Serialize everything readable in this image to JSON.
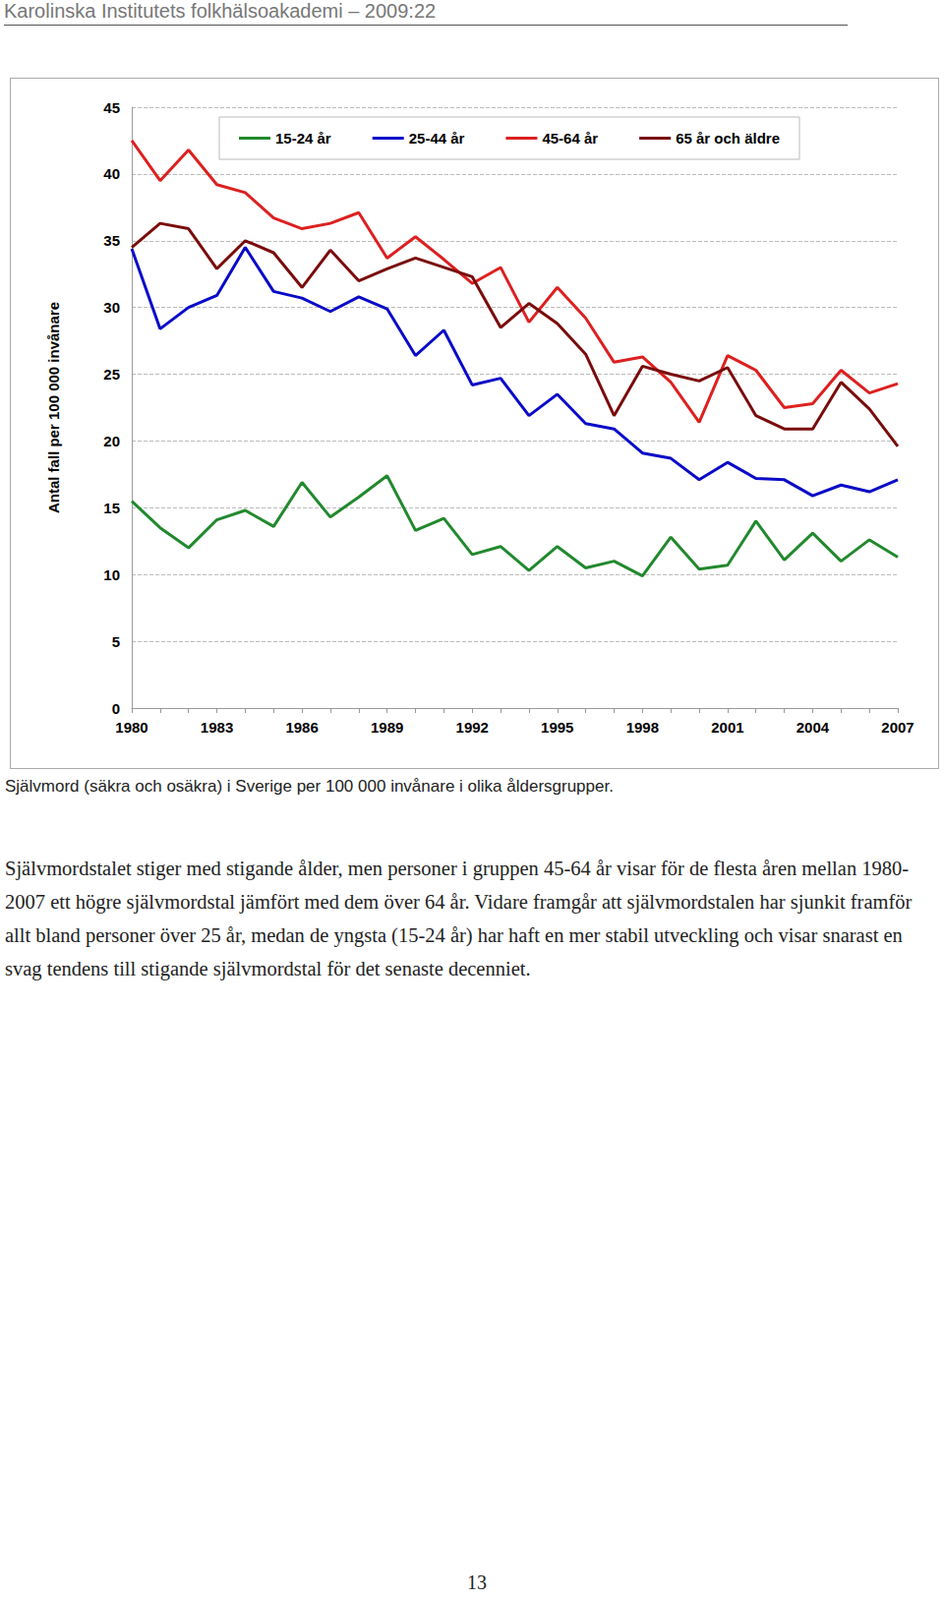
{
  "header": "Karolinska Institutets folkhälsoakademi – 2009:22",
  "chart_data": {
    "type": "line",
    "y_label": "Antal fall per 100 000 invånare",
    "categories": [
      "1980",
      null,
      null,
      "1983",
      null,
      null,
      "1986",
      null,
      null,
      "1989",
      null,
      null,
      "1992",
      null,
      null,
      "1995",
      null,
      null,
      "1998",
      null,
      null,
      "2001",
      null,
      null,
      "2004",
      null,
      null,
      "2007"
    ],
    "series": [
      {
        "name": "15-24 år",
        "color": "#22892e",
        "values": [
          15.5,
          13.5,
          12.0,
          14.1,
          14.8,
          13.6,
          16.9,
          14.3,
          15.8,
          17.4,
          13.3,
          14.2,
          11.5,
          12.1,
          10.3,
          12.1,
          10.5,
          11.0,
          9.9,
          12.8,
          10.4,
          10.7,
          14.0,
          11.1,
          13.1,
          11.0,
          12.6,
          11.3
        ]
      },
      {
        "name": "25-44 år",
        "color": "#0a0ac8",
        "values": [
          34.4,
          28.4,
          30.0,
          30.9,
          34.5,
          31.2,
          30.7,
          29.7,
          30.8,
          29.9,
          26.4,
          28.3,
          24.2,
          24.7,
          21.9,
          23.5,
          21.3,
          20.9,
          19.1,
          18.7,
          17.1,
          18.4,
          17.2,
          17.1,
          15.9,
          16.7,
          16.2,
          17.1
        ]
      },
      {
        "name": "45-64 år",
        "color": "#dd2020",
        "values": [
          42.5,
          39.5,
          41.8,
          39.2,
          38.6,
          36.7,
          35.9,
          36.3,
          37.1,
          33.7,
          35.3,
          33.6,
          31.8,
          33.0,
          28.9,
          31.5,
          29.2,
          25.9,
          26.3,
          24.4,
          21.4,
          26.4,
          25.3,
          22.5,
          22.8,
          25.3,
          23.6,
          24.3
        ]
      },
      {
        "name": "65 år och äldre",
        "color": "#7a0c0c",
        "values": [
          34.5,
          36.3,
          35.9,
          32.9,
          35.0,
          34.1,
          31.5,
          34.3,
          32.0,
          32.9,
          33.7,
          33.0,
          32.3,
          28.5,
          30.3,
          28.8,
          26.5,
          21.9,
          25.6,
          25.0,
          24.5,
          25.5,
          21.9,
          20.9,
          20.9,
          24.4,
          22.4,
          19.6
        ]
      }
    ],
    "ylim": [
      0,
      45
    ],
    "yticks": [
      0,
      5,
      10,
      15,
      20,
      25,
      30,
      35,
      40,
      45
    ],
    "grid": true,
    "legend": "top"
  },
  "caption": "Självmord (säkra och osäkra) i Sverige per 100 000 invånare i olika åldersgrupper.",
  "paragraph": "Självmordstalet stiger med stigande ålder, men personer i gruppen 45-64 år visar för de flesta åren mellan 1980-2007 ett högre självmordstal jämfört med dem över 64 år. Vidare framgår att självmordstalen har sjunkit framför allt bland personer över 25 år, medan de yngsta (15-24 år) har haft en mer stabil utveckling och visar snarast en svag tendens till stigande självmordstal för det senaste decenniet.",
  "page_number": "13"
}
